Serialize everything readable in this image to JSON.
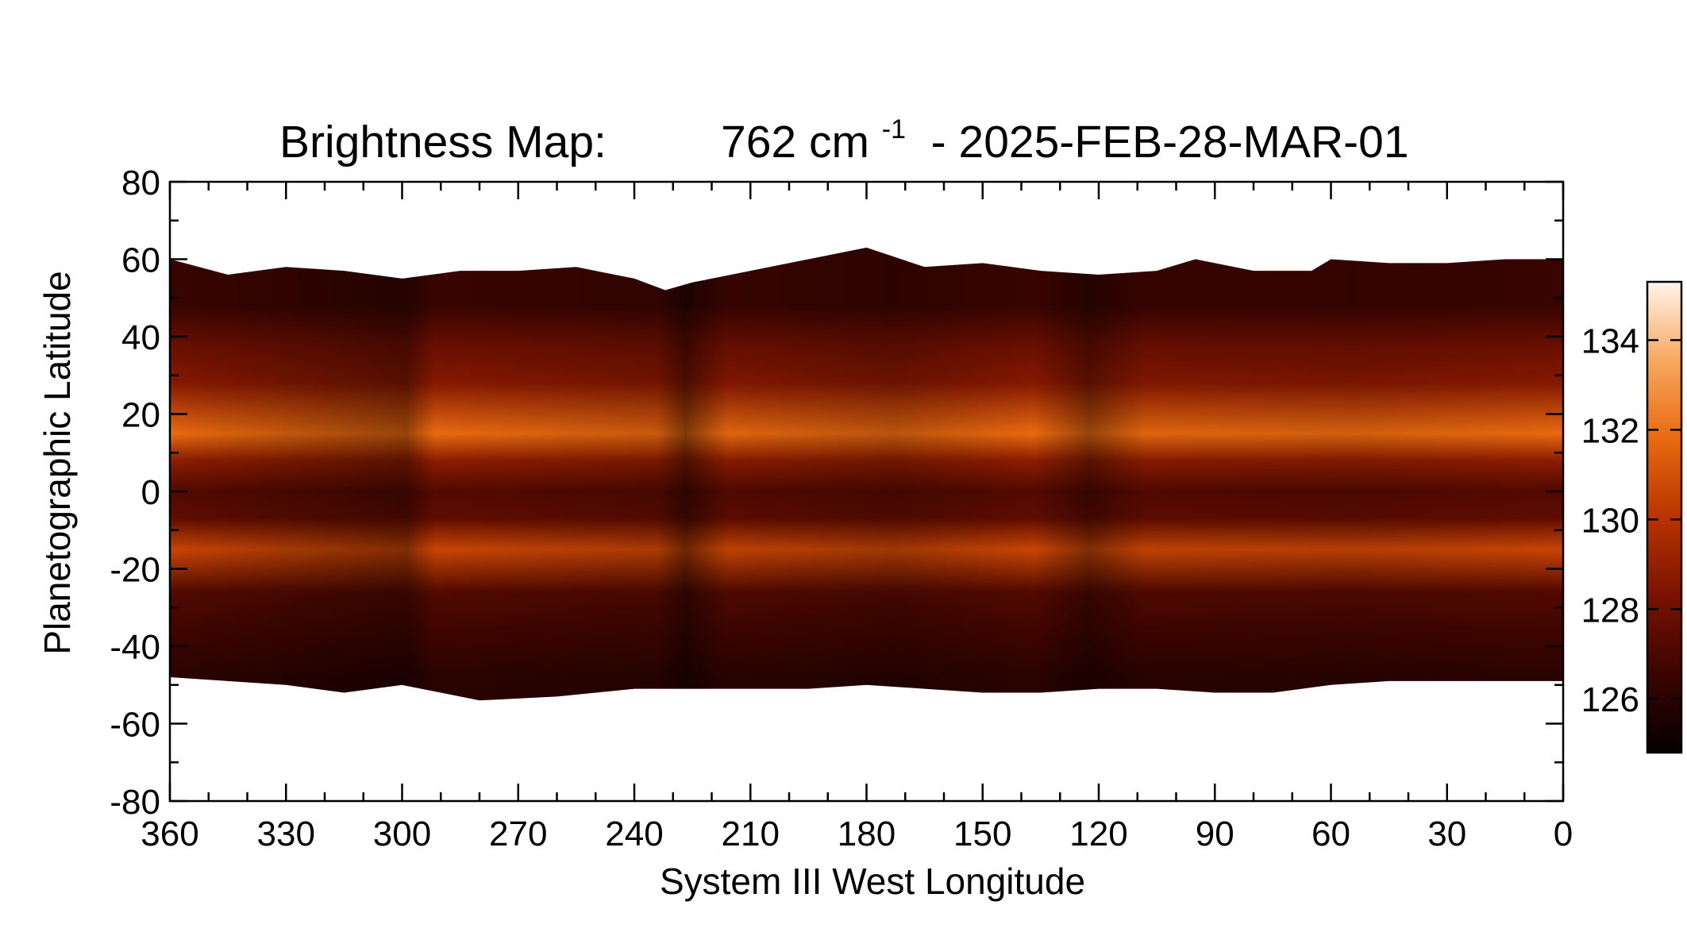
{
  "chart_data": {
    "type": "heatmap",
    "title_prefix": "Brightness Map:",
    "title_value": "762 cm",
    "title_exponent": "-1",
    "title_suffix": " - 2025-FEB-28-MAR-01",
    "xlabel": "System III West Longitude",
    "ylabel": "Planetographic Latitude",
    "xlim": [
      360,
      0
    ],
    "ylim": [
      -80,
      80
    ],
    "x_ticks": [
      360,
      330,
      300,
      270,
      240,
      210,
      180,
      150,
      120,
      90,
      60,
      30,
      0
    ],
    "y_ticks": [
      80,
      60,
      40,
      20,
      0,
      -20,
      -40,
      -60,
      -80
    ],
    "colorbar": {
      "range": [
        124.8,
        135.3
      ],
      "ticks": [
        134,
        132,
        130,
        128,
        126
      ],
      "colors": [
        "#050000",
        "#3a0400",
        "#7a1200",
        "#b83400",
        "#e86a10",
        "#f7a860",
        "#fff4ec"
      ]
    },
    "north_edge_latitude": [
      [
        360,
        60
      ],
      [
        345,
        56
      ],
      [
        330,
        58
      ],
      [
        315,
        57
      ],
      [
        300,
        55
      ],
      [
        285,
        57
      ],
      [
        270,
        57
      ],
      [
        255,
        58
      ],
      [
        240,
        55
      ],
      [
        232,
        52
      ],
      [
        225,
        54
      ],
      [
        210,
        57
      ],
      [
        195,
        60
      ],
      [
        180,
        63
      ],
      [
        165,
        58
      ],
      [
        150,
        59
      ],
      [
        135,
        57
      ],
      [
        120,
        56
      ],
      [
        105,
        57
      ],
      [
        95,
        60
      ],
      [
        80,
        57
      ],
      [
        65,
        57
      ],
      [
        60,
        60
      ],
      [
        45,
        59
      ],
      [
        30,
        59
      ],
      [
        15,
        60
      ],
      [
        0,
        60
      ]
    ],
    "south_edge_latitude": [
      [
        360,
        -48
      ],
      [
        345,
        -49
      ],
      [
        330,
        -50
      ],
      [
        315,
        -52
      ],
      [
        300,
        -50
      ],
      [
        290,
        -52
      ],
      [
        280,
        -54
      ],
      [
        260,
        -53
      ],
      [
        240,
        -51
      ],
      [
        225,
        -51
      ],
      [
        210,
        -51
      ],
      [
        195,
        -51
      ],
      [
        180,
        -50
      ],
      [
        165,
        -51
      ],
      [
        150,
        -52
      ],
      [
        135,
        -52
      ],
      [
        120,
        -51
      ],
      [
        105,
        -51
      ],
      [
        90,
        -52
      ],
      [
        75,
        -52
      ],
      [
        60,
        -50
      ],
      [
        45,
        -49
      ],
      [
        30,
        -49
      ],
      [
        15,
        -49
      ],
      [
        0,
        -49
      ]
    ],
    "brightness_bands": [
      {
        "latitude": 48,
        "value": 126.5
      },
      {
        "latitude": 38,
        "value": 127.8
      },
      {
        "latitude": 28,
        "value": 128.6
      },
      {
        "latitude": 15,
        "value": 131.8
      },
      {
        "latitude": 8,
        "value": 128.8
      },
      {
        "latitude": 0,
        "value": 127.2
      },
      {
        "latitude": -7,
        "value": 127.6
      },
      {
        "latitude": -15,
        "value": 130.6
      },
      {
        "latitude": -26,
        "value": 127.2
      },
      {
        "latitude": -38,
        "value": 126.6
      },
      {
        "latitude": -48,
        "value": 126.0
      }
    ]
  }
}
